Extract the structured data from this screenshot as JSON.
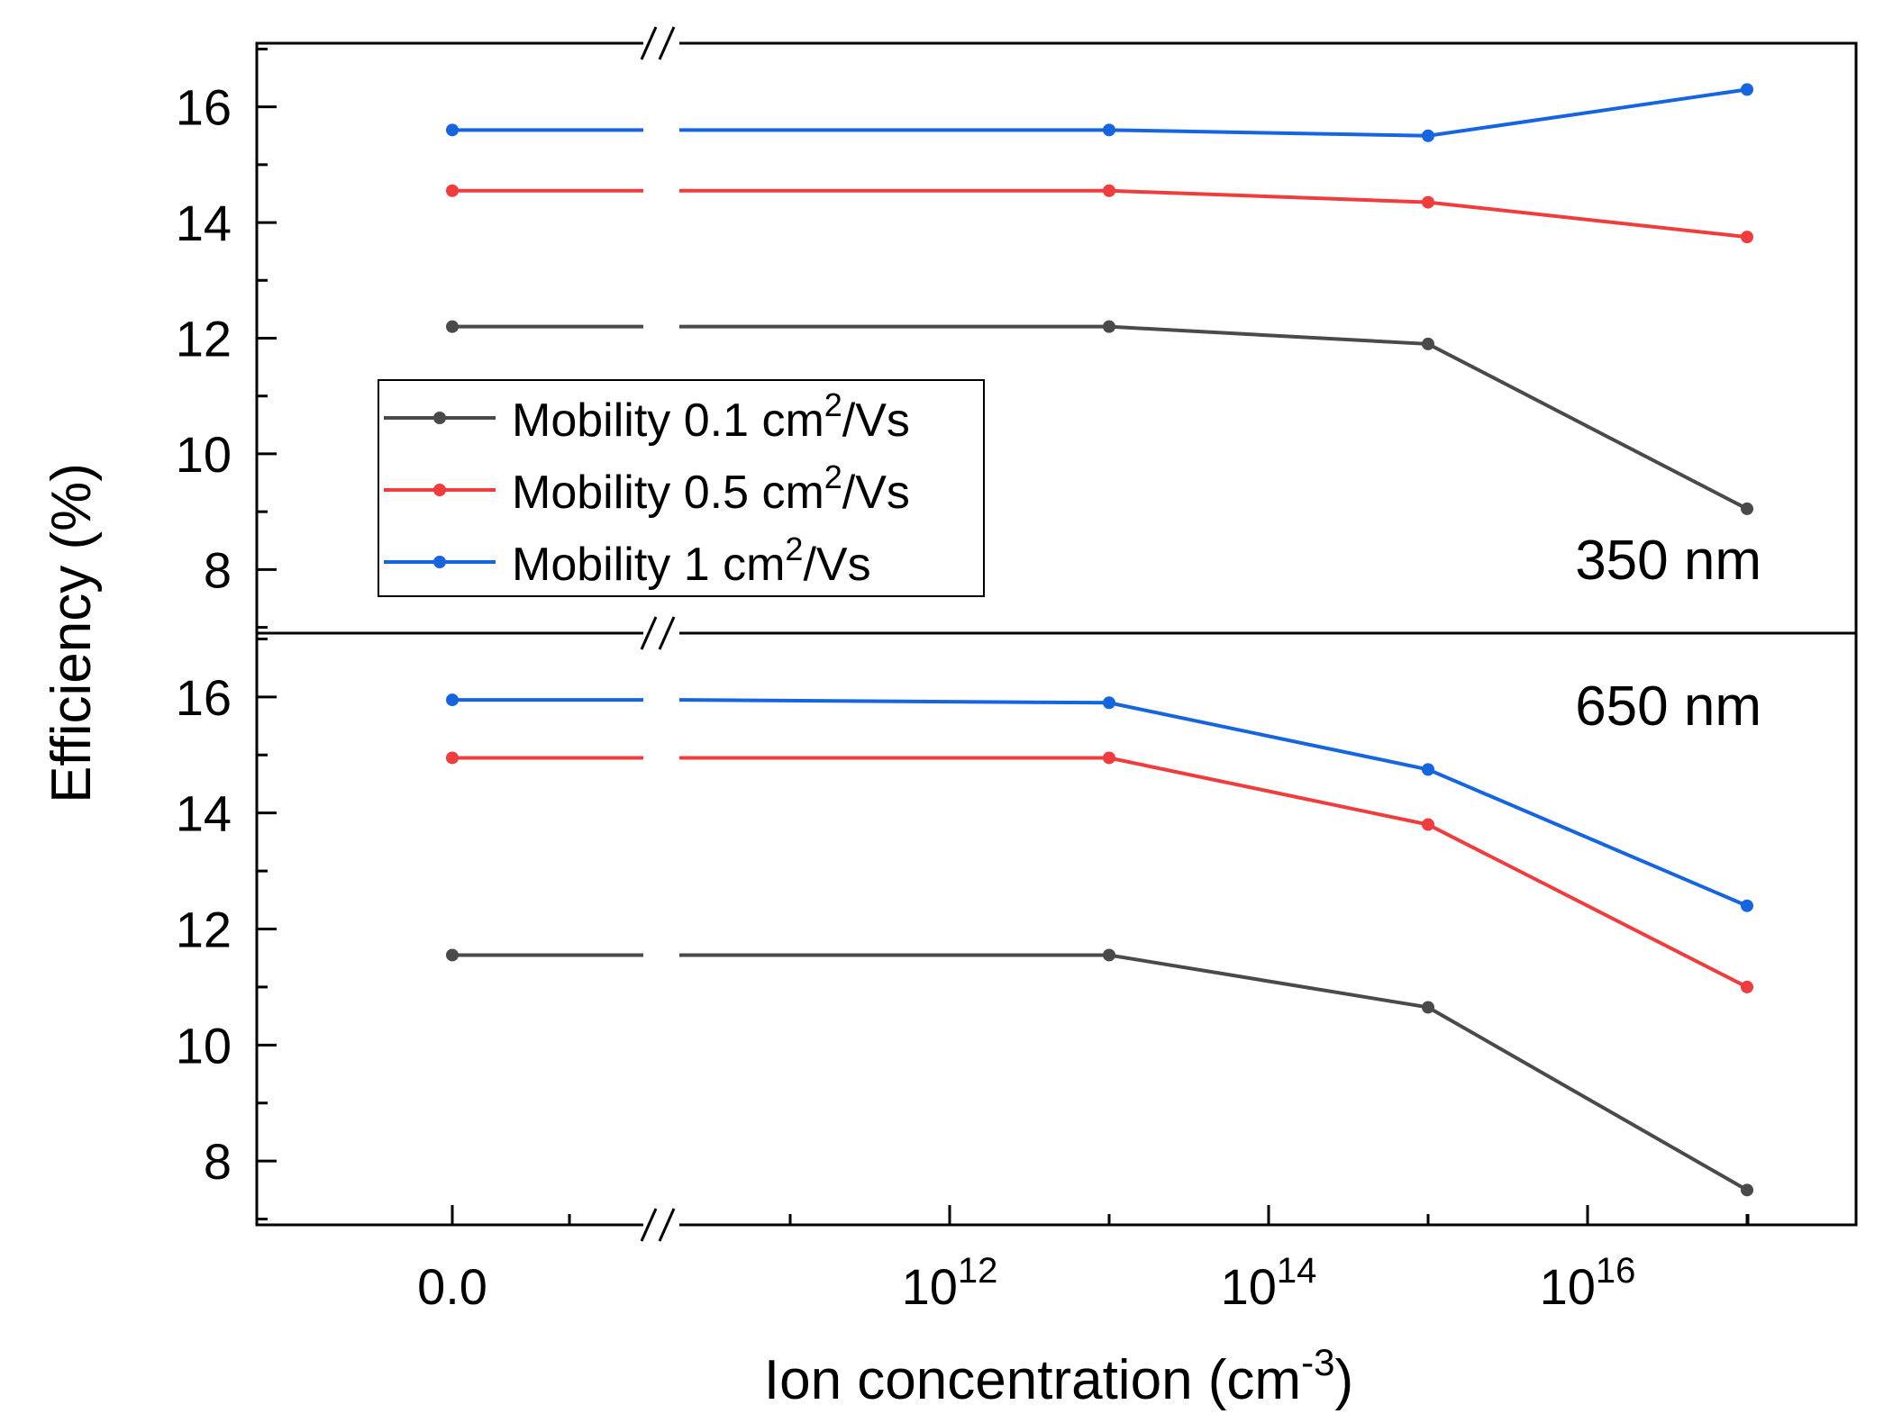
{
  "chart_data": {
    "type": "line",
    "xlabel": "Ion concentration (cm",
    "xlabel_sup": "-3",
    "xlabel_tail": ")",
    "ylabel": "Efficiency (%)",
    "x_tick_labels": [
      {
        "base": "0.0",
        "exp": ""
      },
      {
        "base": "10",
        "exp": "12"
      },
      {
        "base": "10",
        "exp": "14"
      },
      {
        "base": "10",
        "exp": "16"
      }
    ],
    "x_ticks_log10": [
      12,
      14,
      16
    ],
    "x_break": true,
    "x": [
      0,
      10000000000000.0,
      1000000000000000.0,
      1e+17
    ],
    "y_ticks": [
      8,
      10,
      12,
      14,
      16
    ],
    "ylim": [
      6.9,
      17.1
    ],
    "legend": {
      "placement": "center-left of top panel",
      "entries": [
        {
          "prefix": "Mobility 0.1 cm",
          "sup": "2",
          "suffix": "/Vs"
        },
        {
          "prefix": "Mobility 0.5 cm",
          "sup": "2",
          "suffix": "/Vs"
        },
        {
          "prefix": "Mobility 1 cm",
          "sup": "2",
          "suffix": "/Vs"
        }
      ]
    },
    "colors": [
      "#4a4a4a",
      "#f03c3c",
      "#1565e0"
    ],
    "panels": [
      {
        "label": "350 nm",
        "series": [
          {
            "name": "Mobility 0.1 cm2/Vs",
            "values": [
              12.2,
              12.2,
              11.9,
              9.05
            ]
          },
          {
            "name": "Mobility 0.5 cm2/Vs",
            "values": [
              14.55,
              14.55,
              14.35,
              13.75
            ]
          },
          {
            "name": "Mobility 1 cm2/Vs",
            "values": [
              15.6,
              15.6,
              15.5,
              16.3
            ]
          }
        ]
      },
      {
        "label": "650 nm",
        "series": [
          {
            "name": "Mobility 0.1 cm2/Vs",
            "values": [
              11.55,
              11.55,
              10.65,
              7.5
            ]
          },
          {
            "name": "Mobility 0.5 cm2/Vs",
            "values": [
              14.95,
              14.95,
              13.8,
              11.0
            ]
          },
          {
            "name": "Mobility 1 cm2/Vs",
            "values": [
              15.95,
              15.9,
              14.75,
              12.4
            ]
          }
        ]
      }
    ]
  }
}
